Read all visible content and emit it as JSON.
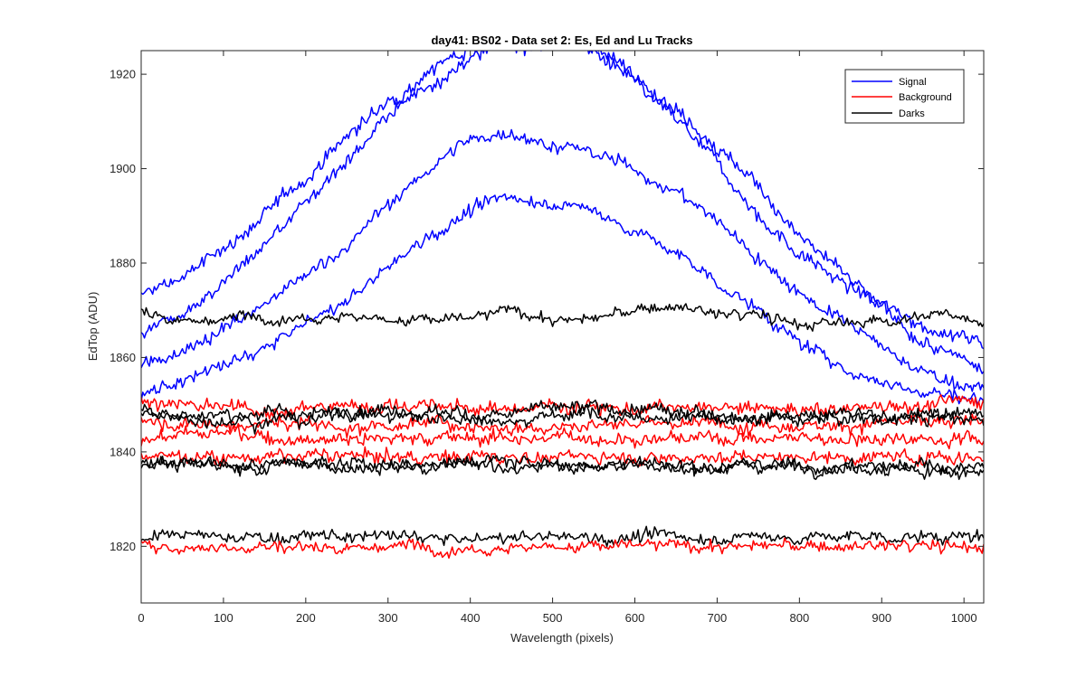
{
  "chart_data": {
    "type": "line",
    "title": "day41: BS02 - Data set 2: Es, Ed and Lu Tracks",
    "xlabel": "Wavelength (pixels)",
    "ylabel": "EdTop (ADU)",
    "xlim": [
      0,
      1024
    ],
    "ylim": [
      1808,
      1925
    ],
    "xticks": [
      0,
      100,
      200,
      300,
      400,
      500,
      600,
      700,
      800,
      900,
      1000
    ],
    "yticks": [
      1820,
      1840,
      1860,
      1880,
      1900,
      1920
    ],
    "grid": false,
    "legend_position": "top-right",
    "legend": [
      {
        "label": "Signal",
        "color": "#0000ff"
      },
      {
        "label": "Background",
        "color": "#ff0000"
      },
      {
        "label": "Darks",
        "color": "#000000"
      }
    ],
    "x": [
      0,
      50,
      100,
      150,
      200,
      250,
      300,
      350,
      400,
      450,
      500,
      550,
      600,
      650,
      700,
      750,
      800,
      850,
      900,
      950,
      1024
    ],
    "series": [
      {
        "group": "Signal",
        "color": "#0000ff",
        "noise": 1.2,
        "values": [
          1873,
          1877,
          1883,
          1890,
          1898,
          1907,
          1914,
          1921,
          1926,
          1929,
          1928,
          1925,
          1918,
          1910,
          1901,
          1890,
          1882,
          1876,
          1871,
          1867,
          1863
        ]
      },
      {
        "group": "Signal",
        "color": "#0000ff",
        "noise": 1.2,
        "values": [
          1865,
          1870,
          1876,
          1884,
          1893,
          1902,
          1911,
          1918,
          1923,
          1926,
          1927,
          1926,
          1920,
          1913,
          1905,
          1896,
          1886,
          1878,
          1870,
          1863,
          1857
        ]
      },
      {
        "group": "Signal",
        "color": "#0000ff",
        "noise": 1.1,
        "values": [
          1858,
          1862,
          1866,
          1871,
          1877,
          1884,
          1892,
          1900,
          1906,
          1908,
          1905,
          1903,
          1900,
          1895,
          1889,
          1881,
          1874,
          1868,
          1862,
          1857,
          1853
        ]
      },
      {
        "group": "Signal",
        "color": "#0000ff",
        "noise": 1.1,
        "values": [
          1852,
          1855,
          1858,
          1862,
          1867,
          1872,
          1879,
          1886,
          1891,
          1894,
          1893,
          1891,
          1887,
          1882,
          1876,
          1870,
          1863,
          1858,
          1855,
          1853,
          1851
        ]
      },
      {
        "group": "Darks",
        "color": "#000000",
        "noise": 0.9,
        "values": [
          1870,
          1868,
          1868,
          1869,
          1869,
          1869,
          1868,
          1868,
          1868,
          1870,
          1868,
          1868,
          1870,
          1871,
          1869,
          1869,
          1867,
          1867,
          1868,
          1869,
          1868
        ]
      },
      {
        "group": "Background",
        "color": "#ff0000",
        "noise": 1.2,
        "values": [
          1851,
          1850,
          1849,
          1849,
          1849,
          1850,
          1850,
          1850,
          1849,
          1849,
          1850,
          1850,
          1849,
          1849,
          1849,
          1849,
          1849,
          1849,
          1850,
          1850,
          1851
        ]
      },
      {
        "group": "Background",
        "color": "#ff0000",
        "noise": 1.2,
        "values": [
          1847,
          1846,
          1846,
          1846,
          1846,
          1845,
          1846,
          1846,
          1846,
          1845,
          1846,
          1846,
          1846,
          1846,
          1846,
          1846,
          1846,
          1846,
          1846,
          1846,
          1846
        ]
      },
      {
        "group": "Background",
        "color": "#ff0000",
        "noise": 1.2,
        "values": [
          1843,
          1844,
          1844,
          1843,
          1843,
          1843,
          1843,
          1843,
          1843,
          1843,
          1843,
          1843,
          1843,
          1843,
          1843,
          1843,
          1843,
          1843,
          1843,
          1843,
          1843
        ]
      },
      {
        "group": "Background",
        "color": "#ff0000",
        "noise": 1.1,
        "values": [
          1839,
          1839,
          1839,
          1839,
          1839,
          1839,
          1839,
          1839,
          1839,
          1839,
          1839,
          1839,
          1839,
          1839,
          1839,
          1839,
          1839,
          1839,
          1839,
          1839,
          1839
        ]
      },
      {
        "group": "Darks",
        "color": "#000000",
        "noise": 1.1,
        "values": [
          1849,
          1848,
          1848,
          1848,
          1848,
          1849,
          1849,
          1849,
          1848,
          1848,
          1849,
          1849,
          1849,
          1848,
          1848,
          1848,
          1848,
          1848,
          1848,
          1848,
          1848
        ]
      },
      {
        "group": "Darks",
        "color": "#000000",
        "noise": 1.1,
        "values": [
          1848,
          1847,
          1847,
          1847,
          1847,
          1848,
          1848,
          1847,
          1847,
          1847,
          1848,
          1848,
          1847,
          1847,
          1847,
          1847,
          1847,
          1847,
          1847,
          1847,
          1847
        ]
      },
      {
        "group": "Darks",
        "color": "#000000",
        "noise": 1.1,
        "values": [
          1838,
          1837,
          1837,
          1837,
          1838,
          1838,
          1837,
          1837,
          1838,
          1838,
          1837,
          1837,
          1838,
          1837,
          1837,
          1837,
          1837,
          1837,
          1837,
          1837,
          1837
        ]
      },
      {
        "group": "Darks",
        "color": "#000000",
        "noise": 1.0,
        "values": [
          1837,
          1837,
          1837,
          1837,
          1837,
          1837,
          1837,
          1837,
          1837,
          1837,
          1837,
          1837,
          1837,
          1837,
          1837,
          1837,
          1837,
          1837,
          1837,
          1836,
          1836
        ]
      },
      {
        "group": "Darks",
        "color": "#000000",
        "noise": 1.0,
        "values": [
          1822,
          1822,
          1822,
          1822,
          1822,
          1822,
          1822,
          1822,
          1821,
          1822,
          1822,
          1822,
          1822,
          1822,
          1822,
          1822,
          1822,
          1822,
          1822,
          1822,
          1822
        ]
      },
      {
        "group": "Background",
        "color": "#ff0000",
        "noise": 1.0,
        "values": [
          1820,
          1820,
          1820,
          1820,
          1820,
          1820,
          1820,
          1820,
          1820,
          1820,
          1820,
          1820,
          1820,
          1820,
          1820,
          1820,
          1820,
          1820,
          1820,
          1820,
          1820
        ]
      }
    ]
  }
}
